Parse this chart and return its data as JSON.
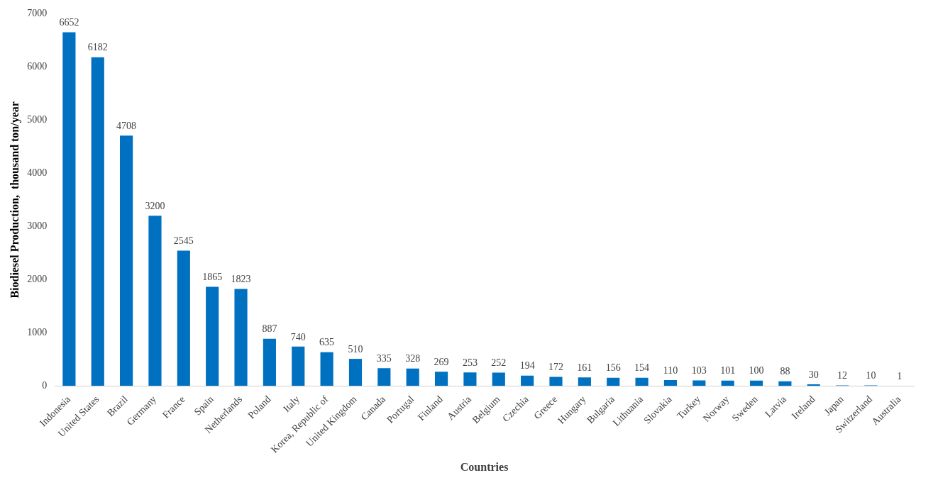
{
  "chart_data": {
    "type": "bar",
    "xlabel": "Countries",
    "ylabel": "Biodiesel Production,  thousand ton/year",
    "categories": [
      "Indonesia",
      "United States",
      "Brazil",
      "Germany",
      "France",
      "Spain",
      "Netherlands",
      "Poland",
      "Italy",
      "Korea, Republic of",
      "United Kingdom",
      "Canada",
      "Portugal",
      "Finland",
      "Austria",
      "Belgium",
      "Czechia",
      "Greece",
      "Hungary",
      "Bulgaria",
      "Lithuania",
      "Slovakia",
      "Turkey",
      "Norway",
      "Sweden",
      "Latvia",
      "Ireland",
      "Japan",
      "Switzerland",
      "Australia"
    ],
    "values": [
      6652,
      6182,
      4708,
      3200,
      2545,
      1865,
      1823,
      887,
      740,
      635,
      510,
      335,
      328,
      269,
      253,
      252,
      194,
      172,
      161,
      156,
      154,
      110,
      103,
      101,
      100,
      88,
      30,
      12,
      10,
      1
    ],
    "color": "#0070c0",
    "ylim": [
      0,
      7000
    ],
    "yticks": [
      0,
      1000,
      2000,
      3000,
      4000,
      5000,
      6000,
      7000
    ],
    "grid": false,
    "legend": false,
    "data_labels": true
  }
}
